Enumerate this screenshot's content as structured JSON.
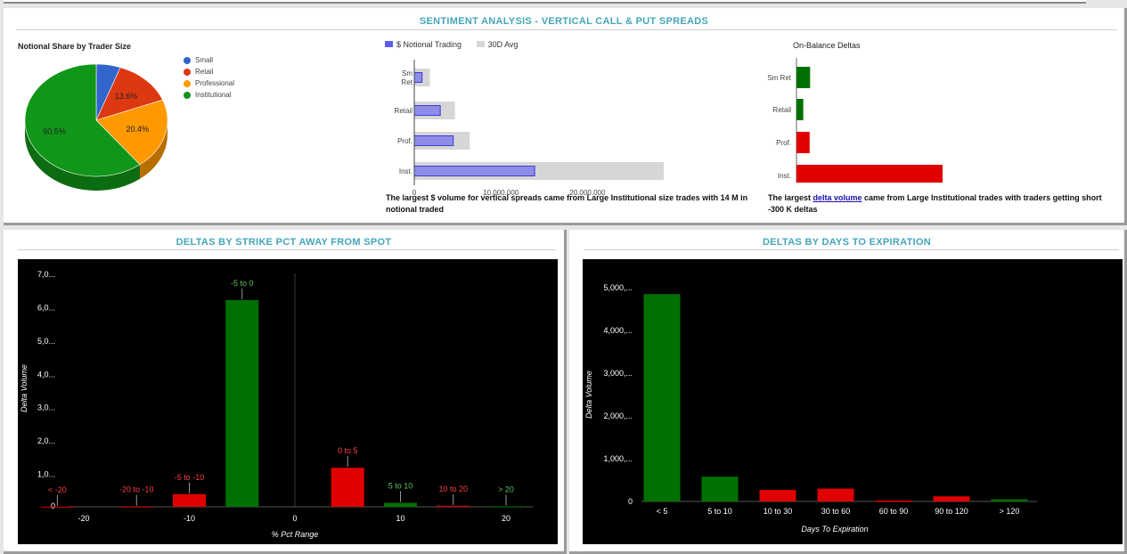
{
  "top_panel": {
    "title": "SENTIMENT ANALYSIS - VERTICAL CALL & PUT SPREADS",
    "pie": {
      "title": "Notional Share by Trader Size",
      "legend": [
        {
          "label": "Small",
          "color": "#3366cc"
        },
        {
          "label": "Retail",
          "color": "#dc3912"
        },
        {
          "label": "Professional",
          "color": "#ff9900"
        },
        {
          "label": "Institutional",
          "color": "#109618"
        }
      ],
      "slice_labels": [
        "",
        "13.6%",
        "20.4%",
        "60.5%"
      ]
    },
    "notional": {
      "legend_series": "$ Notional Trading",
      "legend_avg": "30D Avg",
      "categories": [
        "Sm Ret",
        "Retail",
        "Prof.",
        "Inst."
      ],
      "ticks": [
        "0",
        "10,000,000",
        "20,000,000"
      ],
      "description": "The largest $ volume for vertical spreads came from Large Institutional size trades with 14 M in notional traded"
    },
    "deltas": {
      "title": "On-Balance Deltas",
      "categories": [
        "Sm Ret",
        "Retail",
        "Prof.",
        "Inst."
      ],
      "desc_prefix": "The largest ",
      "desc_link": "delta volume",
      "desc_suffix": " came from Large Institutional trades with traders getting short -300 K deltas"
    }
  },
  "strike_panel": {
    "title": "DELTAS BY STRIKE PCT AWAY FROM SPOT",
    "y_ticks": [
      "0",
      "1,0...",
      "2,0...",
      "3,0...",
      "4,0...",
      "5,0...",
      "6,0...",
      "7,0..."
    ],
    "x_ticks": [
      "-20",
      "-10",
      "0",
      "10",
      "20"
    ],
    "ylabel": "Delta Volume",
    "xlabel": "% Pct Range"
  },
  "expiry_panel": {
    "title": "DELTAS BY DAYS TO EXPIRATION",
    "y_ticks": [
      "0",
      "1,000,...",
      "2,000,...",
      "3,000,...",
      "4,000,...",
      "5,000,..."
    ],
    "ylabel": "Delta Volume",
    "xlabel": "Days To Expiration"
  },
  "chart_data": [
    {
      "type": "pie",
      "title": "Notional Share by Trader Size",
      "categories": [
        "Small",
        "Retail",
        "Professional",
        "Institutional"
      ],
      "values": [
        5.5,
        13.6,
        20.4,
        60.5
      ],
      "colors": [
        "#3366cc",
        "#dc3912",
        "#ff9900",
        "#109618"
      ],
      "legend": "right"
    },
    {
      "type": "bar",
      "orientation": "horizontal",
      "categories": [
        "Sm Ret",
        "Retail",
        "Prof.",
        "Inst."
      ],
      "series": [
        {
          "name": "$ Notional Trading",
          "values": [
            900000,
            3000000,
            4500000,
            13900000
          ],
          "color": "#8d8de8"
        },
        {
          "name": "30D Avg",
          "values": [
            1800000,
            4700000,
            6400000,
            28800000
          ],
          "color": "#d6d6d6"
        }
      ],
      "xlim": [
        0,
        28800000
      ]
    },
    {
      "type": "bar",
      "orientation": "horizontal",
      "title": "On-Balance Deltas",
      "categories": [
        "Sm Ret",
        "Retail",
        "Prof.",
        "Inst."
      ],
      "values": [
        28000,
        14000,
        -27000,
        -300000
      ],
      "colors": [
        "#007000",
        "#007000",
        "#e00000",
        "#e00000"
      ]
    },
    {
      "type": "bar",
      "categories": [
        "< -20",
        "-20 to -10",
        "-5 to -10",
        "-5 to 0",
        "0 to 5",
        "5 to 10",
        "10 to 20",
        "> 20"
      ],
      "x": [
        -22.5,
        -15,
        -10,
        -5,
        5,
        10,
        15,
        20
      ],
      "values": [
        5000,
        8000,
        380000,
        6200000,
        1170000,
        120000,
        30000,
        10000
      ],
      "colors": [
        "#e00000",
        "#e00000",
        "#e00000",
        "#007000",
        "#e00000",
        "#007000",
        "#e00000",
        "#007000"
      ],
      "xlabel": "% Pct Range",
      "ylabel": "Delta Volume",
      "ylim": [
        0,
        7000000
      ],
      "xlim": [
        -25,
        25
      ]
    },
    {
      "type": "bar",
      "categories": [
        "< 5",
        "5 to 10",
        "10 to 30",
        "30 to 60",
        "60 to 90",
        "90 to 120",
        "> 120"
      ],
      "values": [
        4850000,
        580000,
        270000,
        300000,
        20000,
        120000,
        50000
      ],
      "colors": [
        "#007000",
        "#007000",
        "#e00000",
        "#e00000",
        "#e00000",
        "#e00000",
        "#007000"
      ],
      "xlabel": "Days To Expiration",
      "ylabel": "Delta Volume",
      "ylim": [
        0,
        5000000
      ]
    }
  ]
}
